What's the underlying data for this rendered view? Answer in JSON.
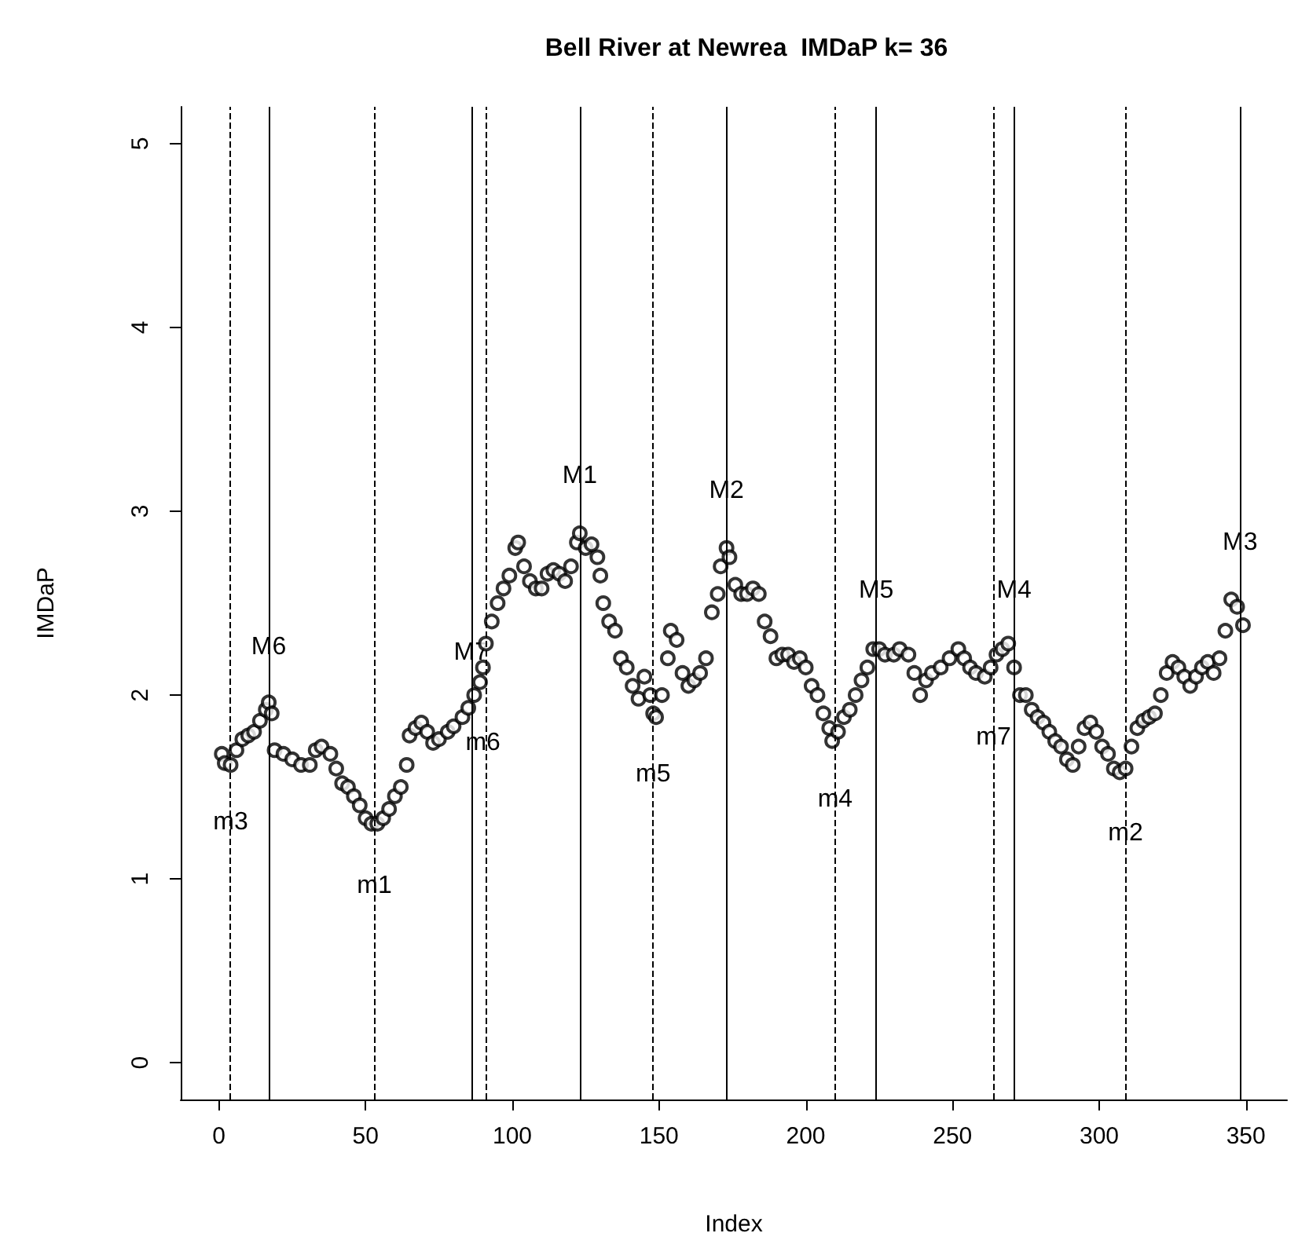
{
  "chart_data": {
    "type": "scatter",
    "title": "Bell River at Newrea  IMDaP k= 36",
    "xlabel": "Index",
    "ylabel": "IMDaP",
    "xlim": [
      -13,
      364
    ],
    "ylim": [
      -0.2,
      5.2
    ],
    "xticks": [
      0,
      50,
      100,
      150,
      200,
      250,
      300,
      350
    ],
    "yticks": [
      0,
      1,
      2,
      3,
      4,
      5
    ],
    "grid": false,
    "marker": "circle",
    "series": [
      {
        "color": "#000000",
        "x": [
          1,
          2,
          4,
          6,
          8,
          10,
          12,
          14,
          16,
          17,
          18,
          19,
          22,
          25,
          28,
          31,
          33,
          35,
          38,
          40,
          42,
          44,
          46,
          48,
          50,
          52,
          54,
          56,
          58,
          60,
          62,
          64,
          65,
          67,
          69,
          71,
          73,
          75,
          78,
          80,
          83,
          85,
          87,
          89,
          90,
          91,
          93,
          95,
          97,
          99,
          101,
          102,
          104,
          106,
          108,
          110,
          112,
          114,
          116,
          118,
          120,
          122,
          123,
          125,
          127,
          129,
          130,
          131,
          133,
          135,
          137,
          139,
          141,
          143,
          145,
          147,
          148,
          149,
          151,
          153,
          154,
          156,
          158,
          160,
          162,
          164,
          166,
          168,
          170,
          171,
          173,
          174,
          176,
          178,
          180,
          182,
          184,
          186,
          188,
          190,
          192,
          194,
          196,
          198,
          200,
          202,
          204,
          206,
          208,
          209,
          211,
          213,
          215,
          217,
          219,
          221,
          223,
          225,
          227,
          230,
          232,
          235,
          237,
          239,
          241,
          243,
          246,
          249,
          252,
          254,
          256,
          258,
          261,
          263,
          265,
          267,
          269,
          271,
          273,
          275,
          277,
          279,
          281,
          283,
          285,
          287,
          289,
          291,
          293,
          295,
          297,
          299,
          301,
          303,
          305,
          307,
          309,
          311,
          313,
          315,
          317,
          319,
          321,
          323,
          325,
          327,
          329,
          331,
          333,
          335,
          337,
          339,
          341,
          343,
          345,
          347,
          349
        ],
        "values": [
          1.68,
          1.63,
          1.62,
          1.7,
          1.76,
          1.78,
          1.8,
          1.86,
          1.92,
          1.96,
          1.9,
          1.7,
          1.68,
          1.65,
          1.62,
          1.62,
          1.7,
          1.72,
          1.68,
          1.6,
          1.52,
          1.5,
          1.45,
          1.4,
          1.33,
          1.3,
          1.3,
          1.33,
          1.38,
          1.45,
          1.5,
          1.62,
          1.78,
          1.82,
          1.85,
          1.8,
          1.74,
          1.76,
          1.8,
          1.83,
          1.88,
          1.93,
          2.0,
          2.07,
          2.15,
          2.28,
          2.4,
          2.5,
          2.58,
          2.65,
          2.8,
          2.83,
          2.7,
          2.62,
          2.58,
          2.58,
          2.66,
          2.68,
          2.66,
          2.62,
          2.7,
          2.83,
          2.88,
          2.8,
          2.82,
          2.75,
          2.65,
          2.5,
          2.4,
          2.35,
          2.2,
          2.15,
          2.05,
          1.98,
          2.1,
          2.0,
          1.9,
          1.88,
          2.0,
          2.2,
          2.35,
          2.3,
          2.12,
          2.05,
          2.08,
          2.12,
          2.2,
          2.45,
          2.55,
          2.7,
          2.8,
          2.75,
          2.6,
          2.55,
          2.55,
          2.58,
          2.55,
          2.4,
          2.32,
          2.2,
          2.22,
          2.22,
          2.18,
          2.2,
          2.15,
          2.05,
          2.0,
          1.9,
          1.82,
          1.75,
          1.8,
          1.88,
          1.92,
          2.0,
          2.08,
          2.15,
          2.25,
          2.25,
          2.22,
          2.22,
          2.25,
          2.22,
          2.12,
          2.0,
          2.08,
          2.12,
          2.15,
          2.2,
          2.25,
          2.2,
          2.15,
          2.12,
          2.1,
          2.15,
          2.22,
          2.25,
          2.28,
          2.15,
          2.0,
          2.0,
          1.92,
          1.88,
          1.85,
          1.8,
          1.75,
          1.72,
          1.65,
          1.62,
          1.72,
          1.82,
          1.85,
          1.8,
          1.72,
          1.68,
          1.6,
          1.58,
          1.6,
          1.72,
          1.82,
          1.86,
          1.88,
          1.9,
          2.0,
          2.12,
          2.18,
          2.15,
          2.1,
          2.05,
          2.1,
          2.15,
          2.18,
          2.12,
          2.2,
          2.35,
          2.52,
          2.48,
          2.38
        ]
      }
    ],
    "ref_lines": [
      {
        "axis": "x",
        "value": 17,
        "line_style": "solid",
        "color": "#000000"
      },
      {
        "axis": "x",
        "value": 86,
        "line_style": "solid",
        "color": "#000000"
      },
      {
        "axis": "x",
        "value": 123,
        "line_style": "solid",
        "color": "#000000"
      },
      {
        "axis": "x",
        "value": 173,
        "line_style": "solid",
        "color": "#000000"
      },
      {
        "axis": "x",
        "value": 224,
        "line_style": "solid",
        "color": "#000000"
      },
      {
        "axis": "x",
        "value": 271,
        "line_style": "solid",
        "color": "#000000"
      },
      {
        "axis": "x",
        "value": 348,
        "line_style": "solid",
        "color": "#000000"
      },
      {
        "axis": "x",
        "value": 4,
        "line_style": "dashed",
        "color": "#000000"
      },
      {
        "axis": "x",
        "value": 53,
        "line_style": "dashed",
        "color": "#000000"
      },
      {
        "axis": "x",
        "value": 91,
        "line_style": "dashed",
        "color": "#000000"
      },
      {
        "axis": "x",
        "value": 148,
        "line_style": "dashed",
        "color": "#000000"
      },
      {
        "axis": "x",
        "value": 210,
        "line_style": "dashed",
        "color": "#000000"
      },
      {
        "axis": "x",
        "value": 264,
        "line_style": "dashed",
        "color": "#000000"
      },
      {
        "axis": "x",
        "value": 309,
        "line_style": "dashed",
        "color": "#000000"
      }
    ],
    "annotations": [
      {
        "text": "M1",
        "x": 123,
        "y": 3.19
      },
      {
        "text": "M2",
        "x": 173,
        "y": 3.11
      },
      {
        "text": "M3",
        "x": 348,
        "y": 2.83
      },
      {
        "text": "M4",
        "x": 271,
        "y": 2.57
      },
      {
        "text": "M5",
        "x": 224,
        "y": 2.57
      },
      {
        "text": "M6",
        "x": 17,
        "y": 2.26
      },
      {
        "text": "M7",
        "x": 86,
        "y": 2.23
      },
      {
        "text": "m1",
        "x": 53,
        "y": 0.96
      },
      {
        "text": "m2",
        "x": 309,
        "y": 1.25
      },
      {
        "text": "m3",
        "x": 4,
        "y": 1.31
      },
      {
        "text": "m4",
        "x": 210,
        "y": 1.43
      },
      {
        "text": "m5",
        "x": 148,
        "y": 1.57
      },
      {
        "text": "m6",
        "x": 90,
        "y": 1.74
      },
      {
        "text": "m7",
        "x": 264,
        "y": 1.77
      }
    ]
  }
}
